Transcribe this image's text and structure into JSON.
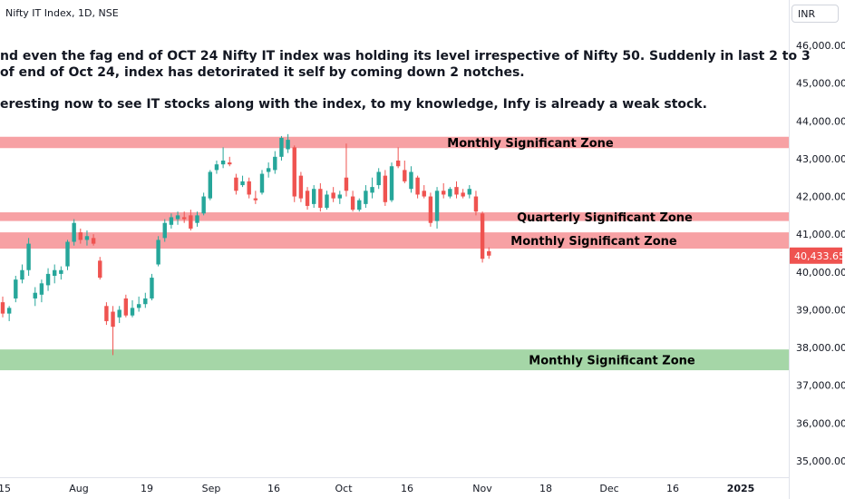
{
  "header": {
    "title": "Nifty IT Index, 1D, NSE",
    "currency": "INR"
  },
  "annotation_lines": [
    "nd even the fag end of OCT 24 Nifty IT index was holding its level irrespective of Nifty 50. Suddenly in last 2 to 3",
    "of end of Oct 24, index has detorirated it self by coming down 2 notches.",
    "eresting now to see IT stocks along with the index, to my knowledge, Infy is already a weak stock."
  ],
  "colors": {
    "up": "#26a69a",
    "down": "#ef5350",
    "resistance_zone": "#f7a1a4",
    "support_zone": "#a5d6a7",
    "last_price_bg": "#ef5350",
    "grid_text": "#131722"
  },
  "chart_data": {
    "type": "candlestick",
    "title": "Nifty IT Index, 1D, NSE",
    "y_axis": {
      "range": [
        34800,
        46800
      ],
      "ticks": [
        "46,000.00",
        "45,000.00",
        "44,000.00",
        "43,000.00",
        "42,000.00",
        "41,000.00",
        "40,000.00",
        "39,000.00",
        "38,000.00",
        "37,000.00",
        "36,000.00",
        "35,000.00"
      ],
      "tick_values": [
        46000,
        45000,
        44000,
        43000,
        42000,
        41000,
        40000,
        39000,
        38000,
        37000,
        36000,
        35000
      ]
    },
    "x_axis": {
      "labels": [
        "15",
        "Aug",
        "19",
        "Sep",
        "16",
        "Oct",
        "16",
        "Nov",
        "18",
        "Dec",
        "16",
        "2025"
      ],
      "label_bold": [
        false,
        false,
        false,
        false,
        false,
        false,
        false,
        false,
        false,
        false,
        false,
        true
      ]
    },
    "last_price": {
      "value": 40433.65,
      "label": "40,433.65"
    },
    "zones": [
      {
        "label": "Monthly Significant Zone",
        "from": 43280,
        "to": 43580,
        "type": "resistance"
      },
      {
        "label": "Quarterly Significant Zone",
        "from": 41350,
        "to": 41580,
        "type": "resistance"
      },
      {
        "label": "Monthly Significant Zone",
        "from": 40620,
        "to": 41050,
        "type": "resistance"
      },
      {
        "label": "Monthly Significant Zone",
        "from": 37400,
        "to": 37950,
        "type": "support"
      }
    ],
    "candles": [
      {
        "o": 39200,
        "h": 39350,
        "l": 38800,
        "c": 38900
      },
      {
        "o": 38900,
        "h": 39100,
        "l": 38700,
        "c": 39050
      },
      {
        "o": 39300,
        "h": 39900,
        "l": 39200,
        "c": 39800
      },
      {
        "o": 39800,
        "h": 40200,
        "l": 39700,
        "c": 40050
      },
      {
        "o": 40050,
        "h": 40900,
        "l": 39900,
        "c": 40750
      },
      {
        "o": 39300,
        "h": 39600,
        "l": 39100,
        "c": 39450
      },
      {
        "o": 39400,
        "h": 39800,
        "l": 39200,
        "c": 39700
      },
      {
        "o": 39650,
        "h": 40100,
        "l": 39500,
        "c": 39950
      },
      {
        "o": 39900,
        "h": 40200,
        "l": 39700,
        "c": 40050
      },
      {
        "o": 39950,
        "h": 40150,
        "l": 39800,
        "c": 40050
      },
      {
        "o": 40150,
        "h": 40850,
        "l": 40050,
        "c": 40800
      },
      {
        "o": 40800,
        "h": 41400,
        "l": 40700,
        "c": 41300
      },
      {
        "o": 41050,
        "h": 41150,
        "l": 40750,
        "c": 40850
      },
      {
        "o": 40850,
        "h": 41100,
        "l": 40700,
        "c": 40950
      },
      {
        "o": 40900,
        "h": 41000,
        "l": 40700,
        "c": 40750
      },
      {
        "o": 40300,
        "h": 40400,
        "l": 39800,
        "c": 39850
      },
      {
        "o": 39100,
        "h": 39200,
        "l": 38600,
        "c": 38700
      },
      {
        "o": 38950,
        "h": 39100,
        "l": 37800,
        "c": 38550
      },
      {
        "o": 38800,
        "h": 39100,
        "l": 38650,
        "c": 39000
      },
      {
        "o": 39300,
        "h": 39400,
        "l": 38800,
        "c": 38850
      },
      {
        "o": 38850,
        "h": 39250,
        "l": 38800,
        "c": 39050
      },
      {
        "o": 39050,
        "h": 39350,
        "l": 38950,
        "c": 39150
      },
      {
        "o": 39150,
        "h": 39450,
        "l": 39050,
        "c": 39300
      },
      {
        "o": 39300,
        "h": 39950,
        "l": 39250,
        "c": 39850
      },
      {
        "o": 40200,
        "h": 40950,
        "l": 40150,
        "c": 40850
      },
      {
        "o": 40900,
        "h": 41400,
        "l": 40800,
        "c": 41300
      },
      {
        "o": 41250,
        "h": 41550,
        "l": 41150,
        "c": 41450
      },
      {
        "o": 41400,
        "h": 41600,
        "l": 41250,
        "c": 41500
      },
      {
        "o": 41450,
        "h": 41600,
        "l": 41300,
        "c": 41400
      },
      {
        "o": 41500,
        "h": 41650,
        "l": 41100,
        "c": 41150
      },
      {
        "o": 41300,
        "h": 41600,
        "l": 41200,
        "c": 41500
      },
      {
        "o": 41550,
        "h": 42100,
        "l": 41500,
        "c": 42000
      },
      {
        "o": 41950,
        "h": 42700,
        "l": 41900,
        "c": 42650
      },
      {
        "o": 42700,
        "h": 42950,
        "l": 42600,
        "c": 42850
      },
      {
        "o": 42850,
        "h": 43300,
        "l": 42750,
        "c": 42950
      },
      {
        "o": 42900,
        "h": 43050,
        "l": 42800,
        "c": 42850
      },
      {
        "o": 42500,
        "h": 42600,
        "l": 42050,
        "c": 42150
      },
      {
        "o": 42300,
        "h": 42550,
        "l": 42250,
        "c": 42400
      },
      {
        "o": 42400,
        "h": 42500,
        "l": 41950,
        "c": 42050
      },
      {
        "o": 41950,
        "h": 42150,
        "l": 41800,
        "c": 41900
      },
      {
        "o": 42100,
        "h": 42700,
        "l": 42050,
        "c": 42600
      },
      {
        "o": 42650,
        "h": 42900,
        "l": 42500,
        "c": 42750
      },
      {
        "o": 42700,
        "h": 43200,
        "l": 42600,
        "c": 43050
      },
      {
        "o": 43050,
        "h": 43600,
        "l": 42950,
        "c": 43550
      },
      {
        "o": 43250,
        "h": 43650,
        "l": 43150,
        "c": 43500
      },
      {
        "o": 43300,
        "h": 43350,
        "l": 41850,
        "c": 42000
      },
      {
        "o": 42550,
        "h": 42650,
        "l": 41850,
        "c": 41950
      },
      {
        "o": 42150,
        "h": 42250,
        "l": 41650,
        "c": 41750
      },
      {
        "o": 41800,
        "h": 42300,
        "l": 41700,
        "c": 42200
      },
      {
        "o": 42200,
        "h": 42350,
        "l": 41600,
        "c": 41700
      },
      {
        "o": 41700,
        "h": 42150,
        "l": 41650,
        "c": 42050
      },
      {
        "o": 42100,
        "h": 42250,
        "l": 41850,
        "c": 41950
      },
      {
        "o": 41950,
        "h": 42150,
        "l": 41800,
        "c": 42050
      },
      {
        "o": 42500,
        "h": 43400,
        "l": 42000,
        "c": 42150
      },
      {
        "o": 42000,
        "h": 42150,
        "l": 41600,
        "c": 41650
      },
      {
        "o": 41650,
        "h": 41950,
        "l": 41600,
        "c": 41900
      },
      {
        "o": 41800,
        "h": 42300,
        "l": 41700,
        "c": 42150
      },
      {
        "o": 42100,
        "h": 42500,
        "l": 41950,
        "c": 42250
      },
      {
        "o": 42300,
        "h": 42750,
        "l": 42200,
        "c": 42650
      },
      {
        "o": 42550,
        "h": 42700,
        "l": 41750,
        "c": 41850
      },
      {
        "o": 41900,
        "h": 42900,
        "l": 41850,
        "c": 42800
      },
      {
        "o": 42950,
        "h": 43300,
        "l": 42750,
        "c": 42800
      },
      {
        "o": 42700,
        "h": 42950,
        "l": 42350,
        "c": 42400
      },
      {
        "o": 42200,
        "h": 42800,
        "l": 42100,
        "c": 42650
      },
      {
        "o": 42500,
        "h": 42550,
        "l": 41950,
        "c": 42050
      },
      {
        "o": 42150,
        "h": 42300,
        "l": 41950,
        "c": 42000
      },
      {
        "o": 42000,
        "h": 42100,
        "l": 41200,
        "c": 41300
      },
      {
        "o": 41350,
        "h": 42250,
        "l": 41150,
        "c": 42150
      },
      {
        "o": 42150,
        "h": 42350,
        "l": 41950,
        "c": 42050
      },
      {
        "o": 42000,
        "h": 42250,
        "l": 41950,
        "c": 42200
      },
      {
        "o": 42250,
        "h": 42400,
        "l": 41950,
        "c": 42050
      },
      {
        "o": 42100,
        "h": 42200,
        "l": 41950,
        "c": 42000
      },
      {
        "o": 42050,
        "h": 42300,
        "l": 41950,
        "c": 42200
      },
      {
        "o": 42000,
        "h": 42150,
        "l": 41500,
        "c": 41600
      },
      {
        "o": 41550,
        "h": 41600,
        "l": 40250,
        "c": 40350
      },
      {
        "o": 40550,
        "h": 40650,
        "l": 40350,
        "c": 40433.65
      }
    ]
  }
}
